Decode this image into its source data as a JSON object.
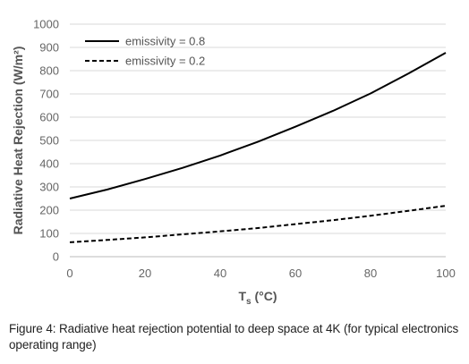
{
  "chart_data": {
    "type": "line",
    "xlabel": "T",
    "xlabel_sub": "s",
    "xlabel_unit": " (°C)",
    "ylabel": "Radiative Heat Rejection (W/m²)",
    "xlim": [
      0,
      100
    ],
    "ylim": [
      0,
      1000
    ],
    "x_ticks": [
      0,
      20,
      40,
      60,
      80,
      100
    ],
    "y_ticks": [
      0,
      100,
      200,
      300,
      400,
      500,
      600,
      700,
      800,
      900,
      1000
    ],
    "grid": "horizontal",
    "legend_position": "top-left",
    "x": [
      0,
      10,
      20,
      30,
      40,
      50,
      60,
      70,
      80,
      90,
      100
    ],
    "series": [
      {
        "name": "emissivity = 0.8",
        "style": "solid",
        "color": "#000000",
        "values": [
          250,
          289,
          334,
          382,
          435,
          494,
          559,
          627,
          702,
          787,
          877
        ]
      },
      {
        "name": "emissivity = 0.2",
        "style": "dashed",
        "color": "#000000",
        "values": [
          62,
          72,
          83,
          96,
          109,
          123,
          140,
          157,
          176,
          197,
          219
        ]
      }
    ]
  },
  "caption": "Figure 4: Radiative heat rejection potential to deep space at 4K (for typical electronics operating range)"
}
